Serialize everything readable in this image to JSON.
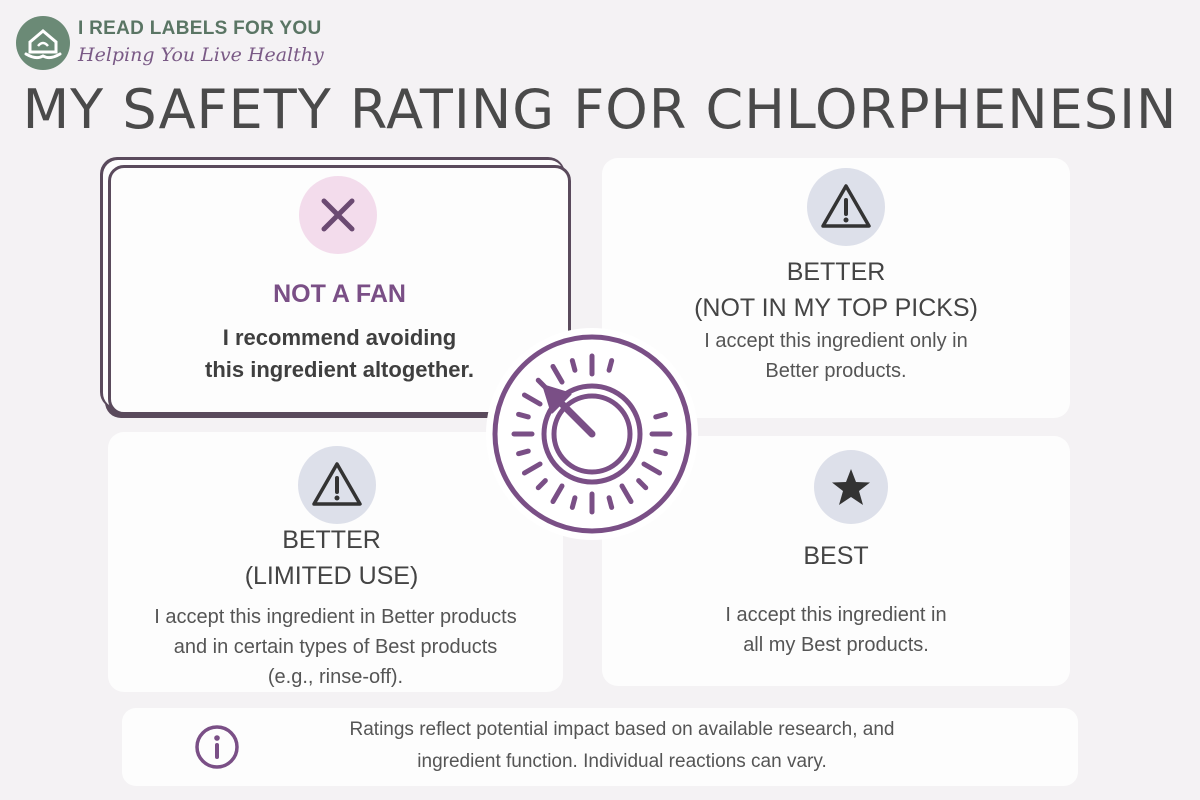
{
  "brand": {
    "name": "I READ LABELS FOR YOU",
    "tagline": "Helping You Live Healthy",
    "logo_icon": "house-hands-icon",
    "colors": {
      "green": "#6b8a76",
      "purple": "#7a4f86"
    }
  },
  "title": "MY SAFETY RATING FOR CHLORPHENESIN",
  "ratings": {
    "not_a_fan": {
      "icon": "x-icon",
      "heading": "NOT A FAN",
      "body_lines": [
        "I recommend avoiding",
        "this ingredient altogether."
      ]
    },
    "better_not_top": {
      "icon": "warning-triangle-icon",
      "heading_lines": [
        "BETTER",
        "(NOT IN MY TOP PICKS)"
      ],
      "body_lines": [
        "I accept this ingredient only in",
        "Better products."
      ]
    },
    "better_limited": {
      "icon": "warning-triangle-icon",
      "heading_lines": [
        "BETTER",
        "(LIMITED USE)"
      ],
      "body_lines": [
        "I accept this ingredient in Better products",
        "and in certain types of Best products",
        "(e.g., rinse-off)."
      ]
    },
    "best": {
      "icon": "star-icon",
      "heading": "BEST",
      "body_lines": [
        "I accept this ingredient in",
        "all my Best products."
      ]
    }
  },
  "dial_icon": "rating-dial-icon",
  "info": {
    "icon": "info-icon",
    "lines": [
      "Ratings reflect potential impact based on available research, and",
      "ingredient function. Individual reactions can vary."
    ]
  }
}
